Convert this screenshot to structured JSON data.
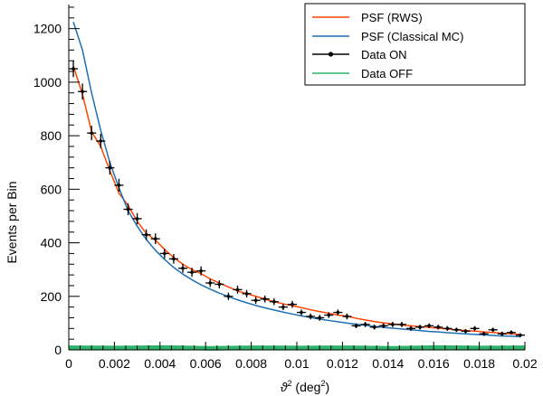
{
  "chart_data": {
    "type": "line",
    "title": "",
    "xlabel": "ϑ² (deg²)",
    "xlabel_base": "ϑ",
    "xlabel_sup": "2",
    "xlabel_unit_open": " (deg",
    "xlabel_unit_sup": "2",
    "xlabel_unit_close": ")",
    "ylabel": "Events per Bin",
    "xlim": [
      0,
      0.02
    ],
    "ylim": [
      0,
      1290
    ],
    "x_ticks": [
      0,
      0.002,
      0.004,
      0.006,
      0.008,
      0.01,
      0.012,
      0.014,
      0.016,
      0.018,
      0.02
    ],
    "x_tick_labels": [
      "0",
      "0.002",
      "0.004",
      "0.006",
      "0.008",
      "0.01",
      "0.012",
      "0.014",
      "0.016",
      "0.018",
      "0.02"
    ],
    "y_ticks": [
      0,
      200,
      400,
      600,
      800,
      1000,
      1200
    ],
    "y_tick_labels": [
      "0",
      "200",
      "400",
      "600",
      "800",
      "1000",
      "1200"
    ],
    "grid": false,
    "legend_position": "top-right",
    "series": [
      {
        "name": "PSF (RWS)",
        "color": "#ff4500",
        "style": "line",
        "x": [
          0.0002,
          0.0006,
          0.001,
          0.0014,
          0.0018,
          0.0022,
          0.0026,
          0.003,
          0.0034,
          0.0038,
          0.0042,
          0.0046,
          0.005,
          0.0054,
          0.0058,
          0.0062,
          0.0066,
          0.007,
          0.0074,
          0.0078,
          0.0082,
          0.0086,
          0.009,
          0.0094,
          0.0098,
          0.0102,
          0.0106,
          0.011,
          0.0114,
          0.0118,
          0.0122,
          0.0126,
          0.013,
          0.0134,
          0.0138,
          0.0142,
          0.0146,
          0.015,
          0.0154,
          0.0158,
          0.0162,
          0.0166,
          0.017,
          0.0174,
          0.0178,
          0.0182,
          0.0186,
          0.019,
          0.0194,
          0.0198
        ],
        "y": [
          1060,
          955,
          815,
          760,
          670,
          585,
          540,
          480,
          435,
          410,
          375,
          345,
          320,
          300,
          285,
          265,
          250,
          235,
          220,
          210,
          200,
          190,
          180,
          172,
          165,
          158,
          150,
          143,
          137,
          130,
          126,
          118,
          112,
          106,
          101,
          97,
          93,
          90,
          87,
          84,
          81,
          78,
          75,
          72,
          70,
          67,
          65,
          62,
          60,
          58
        ]
      },
      {
        "name": "PSF (Classical MC)",
        "color": "#1f6fb4",
        "style": "line",
        "x": [
          0.0002,
          0.0006,
          0.001,
          0.0014,
          0.0018,
          0.0022,
          0.0026,
          0.003,
          0.0034,
          0.0038,
          0.0042,
          0.0046,
          0.005,
          0.0054,
          0.0058,
          0.0062,
          0.0066,
          0.007,
          0.0074,
          0.0078,
          0.0082,
          0.0086,
          0.009,
          0.0094,
          0.0098,
          0.0102,
          0.0106,
          0.011,
          0.0114,
          0.0118,
          0.0122,
          0.0126,
          0.013,
          0.0134,
          0.0138,
          0.0142,
          0.0146,
          0.015,
          0.0154,
          0.0158,
          0.0162,
          0.0166,
          0.017,
          0.0174,
          0.0178,
          0.0182,
          0.0186,
          0.019,
          0.0194,
          0.0198
        ],
        "y": [
          1225,
          1120,
          960,
          820,
          700,
          605,
          520,
          462,
          412,
          372,
          338,
          308,
          283,
          262,
          243,
          227,
          212,
          199,
          187,
          176,
          166,
          157,
          149,
          141,
          134,
          127,
          121,
          115,
          110,
          105,
          100,
          96,
          92,
          88,
          84,
          81,
          78,
          75,
          72,
          69,
          67,
          64,
          62,
          60,
          58,
          56,
          54,
          52,
          51,
          49
        ]
      },
      {
        "name": "Data ON",
        "color": "#000000",
        "style": "points",
        "x": [
          0.0002,
          0.0006,
          0.001,
          0.0014,
          0.0018,
          0.0022,
          0.0026,
          0.003,
          0.0034,
          0.0038,
          0.0042,
          0.0046,
          0.005,
          0.0054,
          0.0058,
          0.0062,
          0.0066,
          0.007,
          0.0074,
          0.0078,
          0.0082,
          0.0086,
          0.009,
          0.0094,
          0.0098,
          0.0102,
          0.0106,
          0.011,
          0.0114,
          0.0118,
          0.0122,
          0.0126,
          0.013,
          0.0134,
          0.0138,
          0.0142,
          0.0146,
          0.015,
          0.0154,
          0.0158,
          0.0162,
          0.0166,
          0.017,
          0.0174,
          0.0178,
          0.0182,
          0.0186,
          0.019,
          0.0194,
          0.0198
        ],
        "y": [
          1050,
          965,
          810,
          780,
          680,
          615,
          525,
          490,
          430,
          415,
          360,
          340,
          305,
          290,
          295,
          250,
          245,
          200,
          225,
          210,
          185,
          190,
          180,
          160,
          170,
          140,
          125,
          120,
          130,
          140,
          125,
          90,
          95,
          85,
          90,
          95,
          95,
          80,
          85,
          90,
          85,
          80,
          75,
          70,
          80,
          60,
          75,
          60,
          65,
          55
        ],
        "error": [
          31,
          30,
          27,
          27,
          25,
          24,
          22,
          21,
          20,
          20,
          18,
          18,
          17,
          17,
          17,
          15,
          15,
          14,
          15,
          14,
          13,
          13,
          13,
          12,
          13,
          11,
          11,
          11,
          11,
          11,
          11,
          9,
          10,
          9,
          9,
          10,
          10,
          9,
          9,
          9,
          9,
          9,
          8,
          8,
          9,
          8,
          8,
          8,
          8,
          7
        ]
      },
      {
        "name": "Data OFF",
        "color": "#2bb36b",
        "style": "band",
        "x": [
          0.0002,
          0.0022,
          0.0042,
          0.0062,
          0.0082,
          0.0102,
          0.0122,
          0.0142,
          0.0162,
          0.0182,
          0.0198
        ],
        "y": [
          8,
          7,
          9,
          6,
          8,
          7,
          8,
          6,
          9,
          7,
          8
        ]
      }
    ]
  }
}
